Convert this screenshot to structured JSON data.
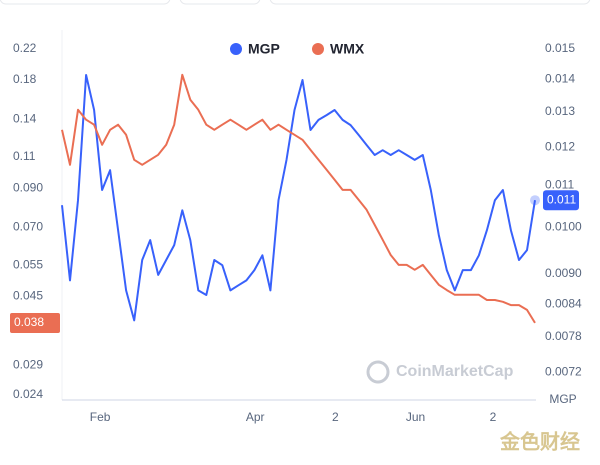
{
  "chart_data": {
    "type": "line",
    "y2_label": "MGP",
    "watermark": "CoinMarketCap",
    "corner_watermark": "金色财经",
    "legend": "top",
    "log_scale": true,
    "grid": false,
    "xlim": [
      0,
      59
    ],
    "xticks": [
      {
        "value": 4.75,
        "label": "Feb"
      },
      {
        "value": 24.1,
        "label": "Apr"
      },
      {
        "value": 34.1,
        "label": "2"
      },
      {
        "value": 44.1,
        "label": "Jun"
      },
      {
        "value": 53.75,
        "label": "2"
      }
    ],
    "ylim": [
      0.0232,
      0.248
    ],
    "yticks": [
      0.22,
      0.18,
      0.14,
      0.11,
      {
        "value": 0.09,
        "label": "0.090"
      },
      {
        "value": 0.07,
        "label": "0.070"
      },
      0.055,
      0.045,
      0.029,
      0.024
    ],
    "y2lim": [
      0.00676,
      0.01566
    ],
    "y2ticks": [
      0.015,
      0.014,
      0.013,
      0.012,
      0.011,
      {
        "value": 0.01,
        "label": "0.0100"
      },
      {
        "value": 0.009,
        "label": "0.0090"
      },
      0.0084,
      0.0078,
      0.0072
    ],
    "series": [
      {
        "name": "MGP",
        "color": "#3861fb",
        "axis": "y2",
        "current_label": "0.011",
        "values": [
          0.01052,
          0.00887,
          0.01064,
          0.01414,
          0.01306,
          0.01089,
          0.01139,
          0.00994,
          0.00867,
          0.0081,
          0.00929,
          0.00972,
          0.00898,
          0.00929,
          0.00961,
          0.0104,
          0.00972,
          0.00867,
          0.00858,
          0.00929,
          0.00918,
          0.00867,
          0.00877,
          0.00887,
          0.00908,
          0.00939,
          0.00867,
          0.01064,
          0.01166,
          0.01306,
          0.01398,
          0.01248,
          0.01277,
          0.01291,
          0.01306,
          0.01277,
          0.01262,
          0.01234,
          0.01206,
          0.01179,
          0.01192,
          0.01179,
          0.01192,
          0.01179,
          0.01166,
          0.01179,
          0.01089,
          0.00983,
          0.00908,
          0.00867,
          0.00908,
          0.00908,
          0.00939,
          0.00994,
          0.01064,
          0.01089,
          0.00994,
          0.00929,
          0.0095,
          0.01064
        ]
      },
      {
        "name": "WMX",
        "color": "#ea6e53",
        "axis": "y",
        "current_label": "0.038",
        "values": [
          0.1309,
          0.1046,
          0.1488,
          0.1396,
          0.1352,
          0.1189,
          0.1309,
          0.1352,
          0.1268,
          0.108,
          0.1046,
          0.108,
          0.1115,
          0.1189,
          0.1352,
          0.1862,
          0.1587,
          0.1488,
          0.1352,
          0.1309,
          0.1352,
          0.1396,
          0.1352,
          0.1309,
          0.1352,
          0.1396,
          0.1309,
          0.1352,
          0.1309,
          0.1268,
          0.1228,
          0.1151,
          0.108,
          0.1013,
          0.095,
          0.0891,
          0.0891,
          0.0836,
          0.0784,
          0.0712,
          0.0647,
          0.0587,
          0.0551,
          0.0551,
          0.0534,
          0.0551,
          0.0517,
          0.0485,
          0.0469,
          0.0455,
          0.0455,
          0.0455,
          0.0455,
          0.044,
          0.044,
          0.0435,
          0.0426,
          0.0426,
          0.0413,
          0.038
        ]
      }
    ]
  }
}
